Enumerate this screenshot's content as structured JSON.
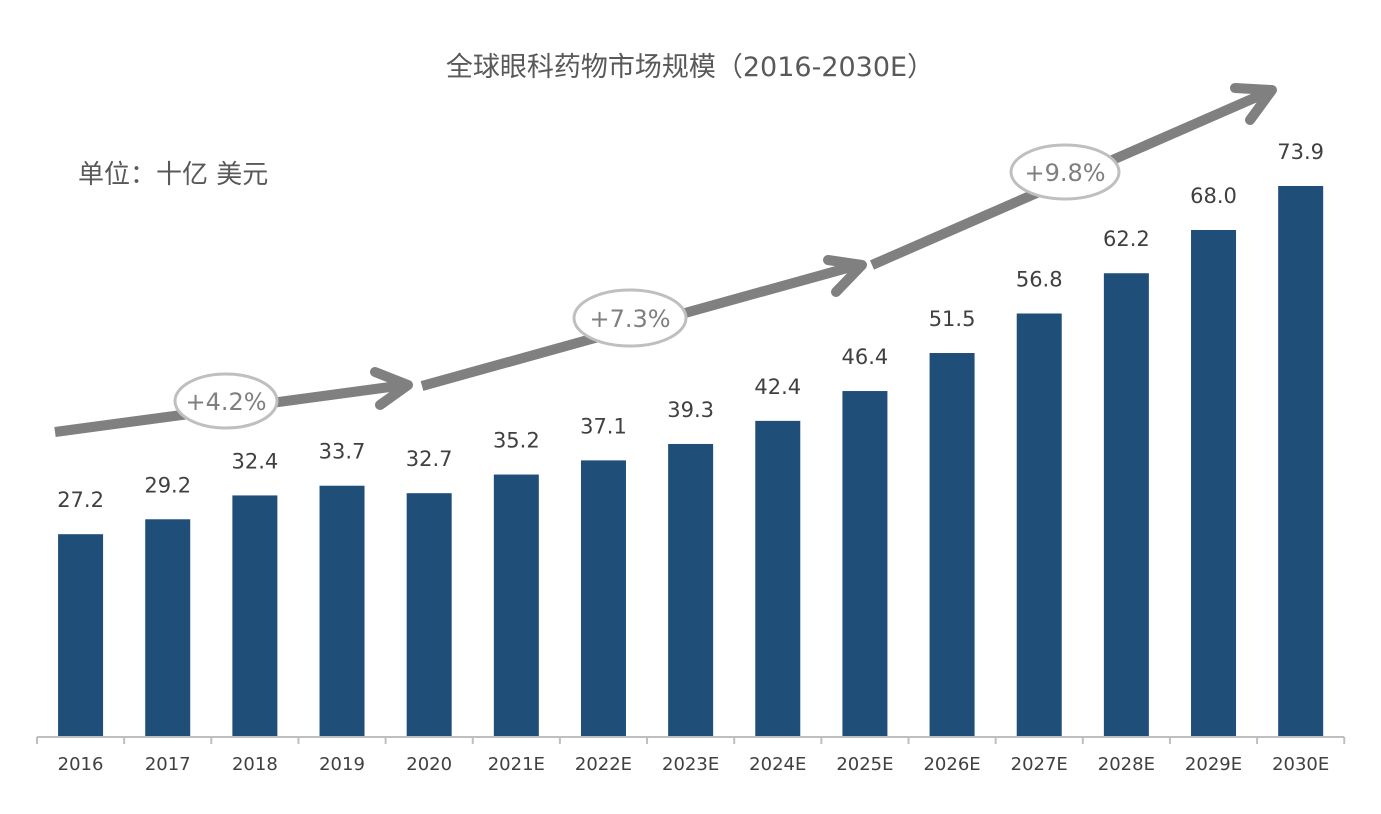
{
  "chart_data": {
    "type": "bar",
    "title": "全球眼科药物市场规模（2016-2030E）",
    "unit_label": "单位：十亿 美元",
    "categories": [
      "2016",
      "2017",
      "2018",
      "2019",
      "2020",
      "2021E",
      "2022E",
      "2023E",
      "2024E",
      "2025E",
      "2026E",
      "2027E",
      "2028E",
      "2029E",
      "2030E"
    ],
    "values": [
      27.2,
      29.2,
      32.4,
      33.7,
      32.7,
      35.2,
      37.1,
      39.3,
      42.4,
      46.4,
      51.5,
      56.8,
      62.2,
      68.0,
      73.9
    ],
    "value_labels": [
      "27.2",
      "29.2",
      "32.4",
      "33.7",
      "32.7",
      "35.2",
      "37.1",
      "39.3",
      "42.4",
      "46.4",
      "51.5",
      "56.8",
      "62.2",
      "68.0",
      "73.9"
    ],
    "ylim": [
      0,
      80
    ],
    "grid": false,
    "annotations": [
      {
        "text": "+4.2%",
        "period": "2016-2020"
      },
      {
        "text": "+7.3%",
        "period": "2021E-2025E"
      },
      {
        "text": "+9.8%",
        "period": "2026E-2030E"
      }
    ],
    "colors": {
      "bar": "#1f4e79",
      "arrow": "#808080",
      "axis": "#bfbfbf"
    }
  }
}
